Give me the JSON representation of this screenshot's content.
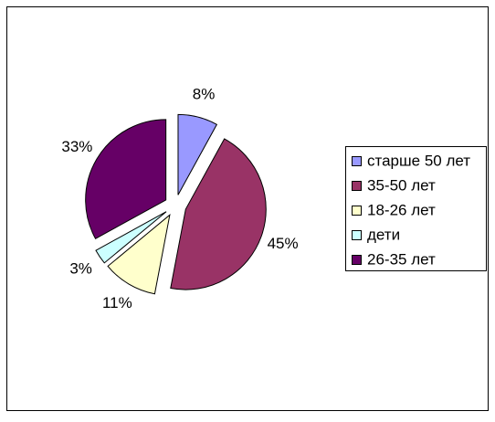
{
  "chart_data": {
    "type": "pie",
    "categories": [
      "старше 50 лет",
      "35-50 лет",
      "18-26 лет",
      "дети",
      "26-35 лет"
    ],
    "values": [
      8,
      45,
      11,
      3,
      33
    ],
    "value_labels": [
      "8%",
      "45%",
      "11%",
      "3%",
      "33%"
    ],
    "colors": [
      "#9999ff",
      "#993366",
      "#ffffcc",
      "#ccffff",
      "#660066"
    ],
    "legend": "right"
  }
}
